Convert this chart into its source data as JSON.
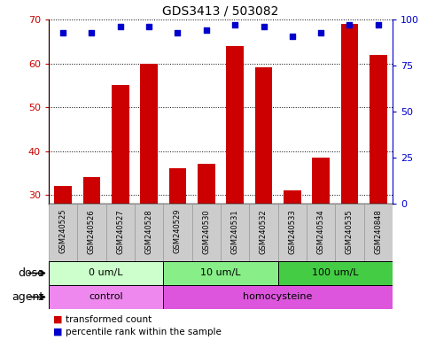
{
  "title": "GDS3413 / 503082",
  "samples": [
    "GSM240525",
    "GSM240526",
    "GSM240527",
    "GSM240528",
    "GSM240529",
    "GSM240530",
    "GSM240531",
    "GSM240532",
    "GSM240533",
    "GSM240534",
    "GSM240535",
    "GSM240848"
  ],
  "bar_values": [
    32,
    34,
    55,
    60,
    36,
    37,
    64,
    59,
    31,
    38.5,
    69,
    62
  ],
  "percentile_values": [
    93,
    93,
    96,
    96,
    93,
    94,
    97,
    96,
    91,
    93,
    97,
    97
  ],
  "ylim_left": [
    28,
    70
  ],
  "ylim_right": [
    0,
    100
  ],
  "yticks_left": [
    30,
    40,
    50,
    60,
    70
  ],
  "yticks_right": [
    0,
    25,
    50,
    75,
    100
  ],
  "bar_color": "#cc0000",
  "dot_color": "#0000cc",
  "dose_groups": [
    {
      "label": "0 um/L",
      "start": 0,
      "end": 4,
      "color": "#ccffcc"
    },
    {
      "label": "10 um/L",
      "start": 4,
      "end": 8,
      "color": "#88ee88"
    },
    {
      "label": "100 um/L",
      "start": 8,
      "end": 12,
      "color": "#44dd44"
    }
  ],
  "agent_groups": [
    {
      "label": "control",
      "start": 0,
      "end": 4,
      "color": "#ee88ee"
    },
    {
      "label": "homocysteine",
      "start": 4,
      "end": 12,
      "color": "#dd55dd"
    }
  ],
  "dose_label": "dose",
  "agent_label": "agent",
  "legend_bar_label": "transformed count",
  "legend_dot_label": "percentile rank within the sample",
  "tick_color_left": "#cc0000",
  "tick_color_right": "#0000cc",
  "grid_color": "#000000",
  "sample_bg_color": "#cccccc",
  "sample_edge_color": "#999999"
}
